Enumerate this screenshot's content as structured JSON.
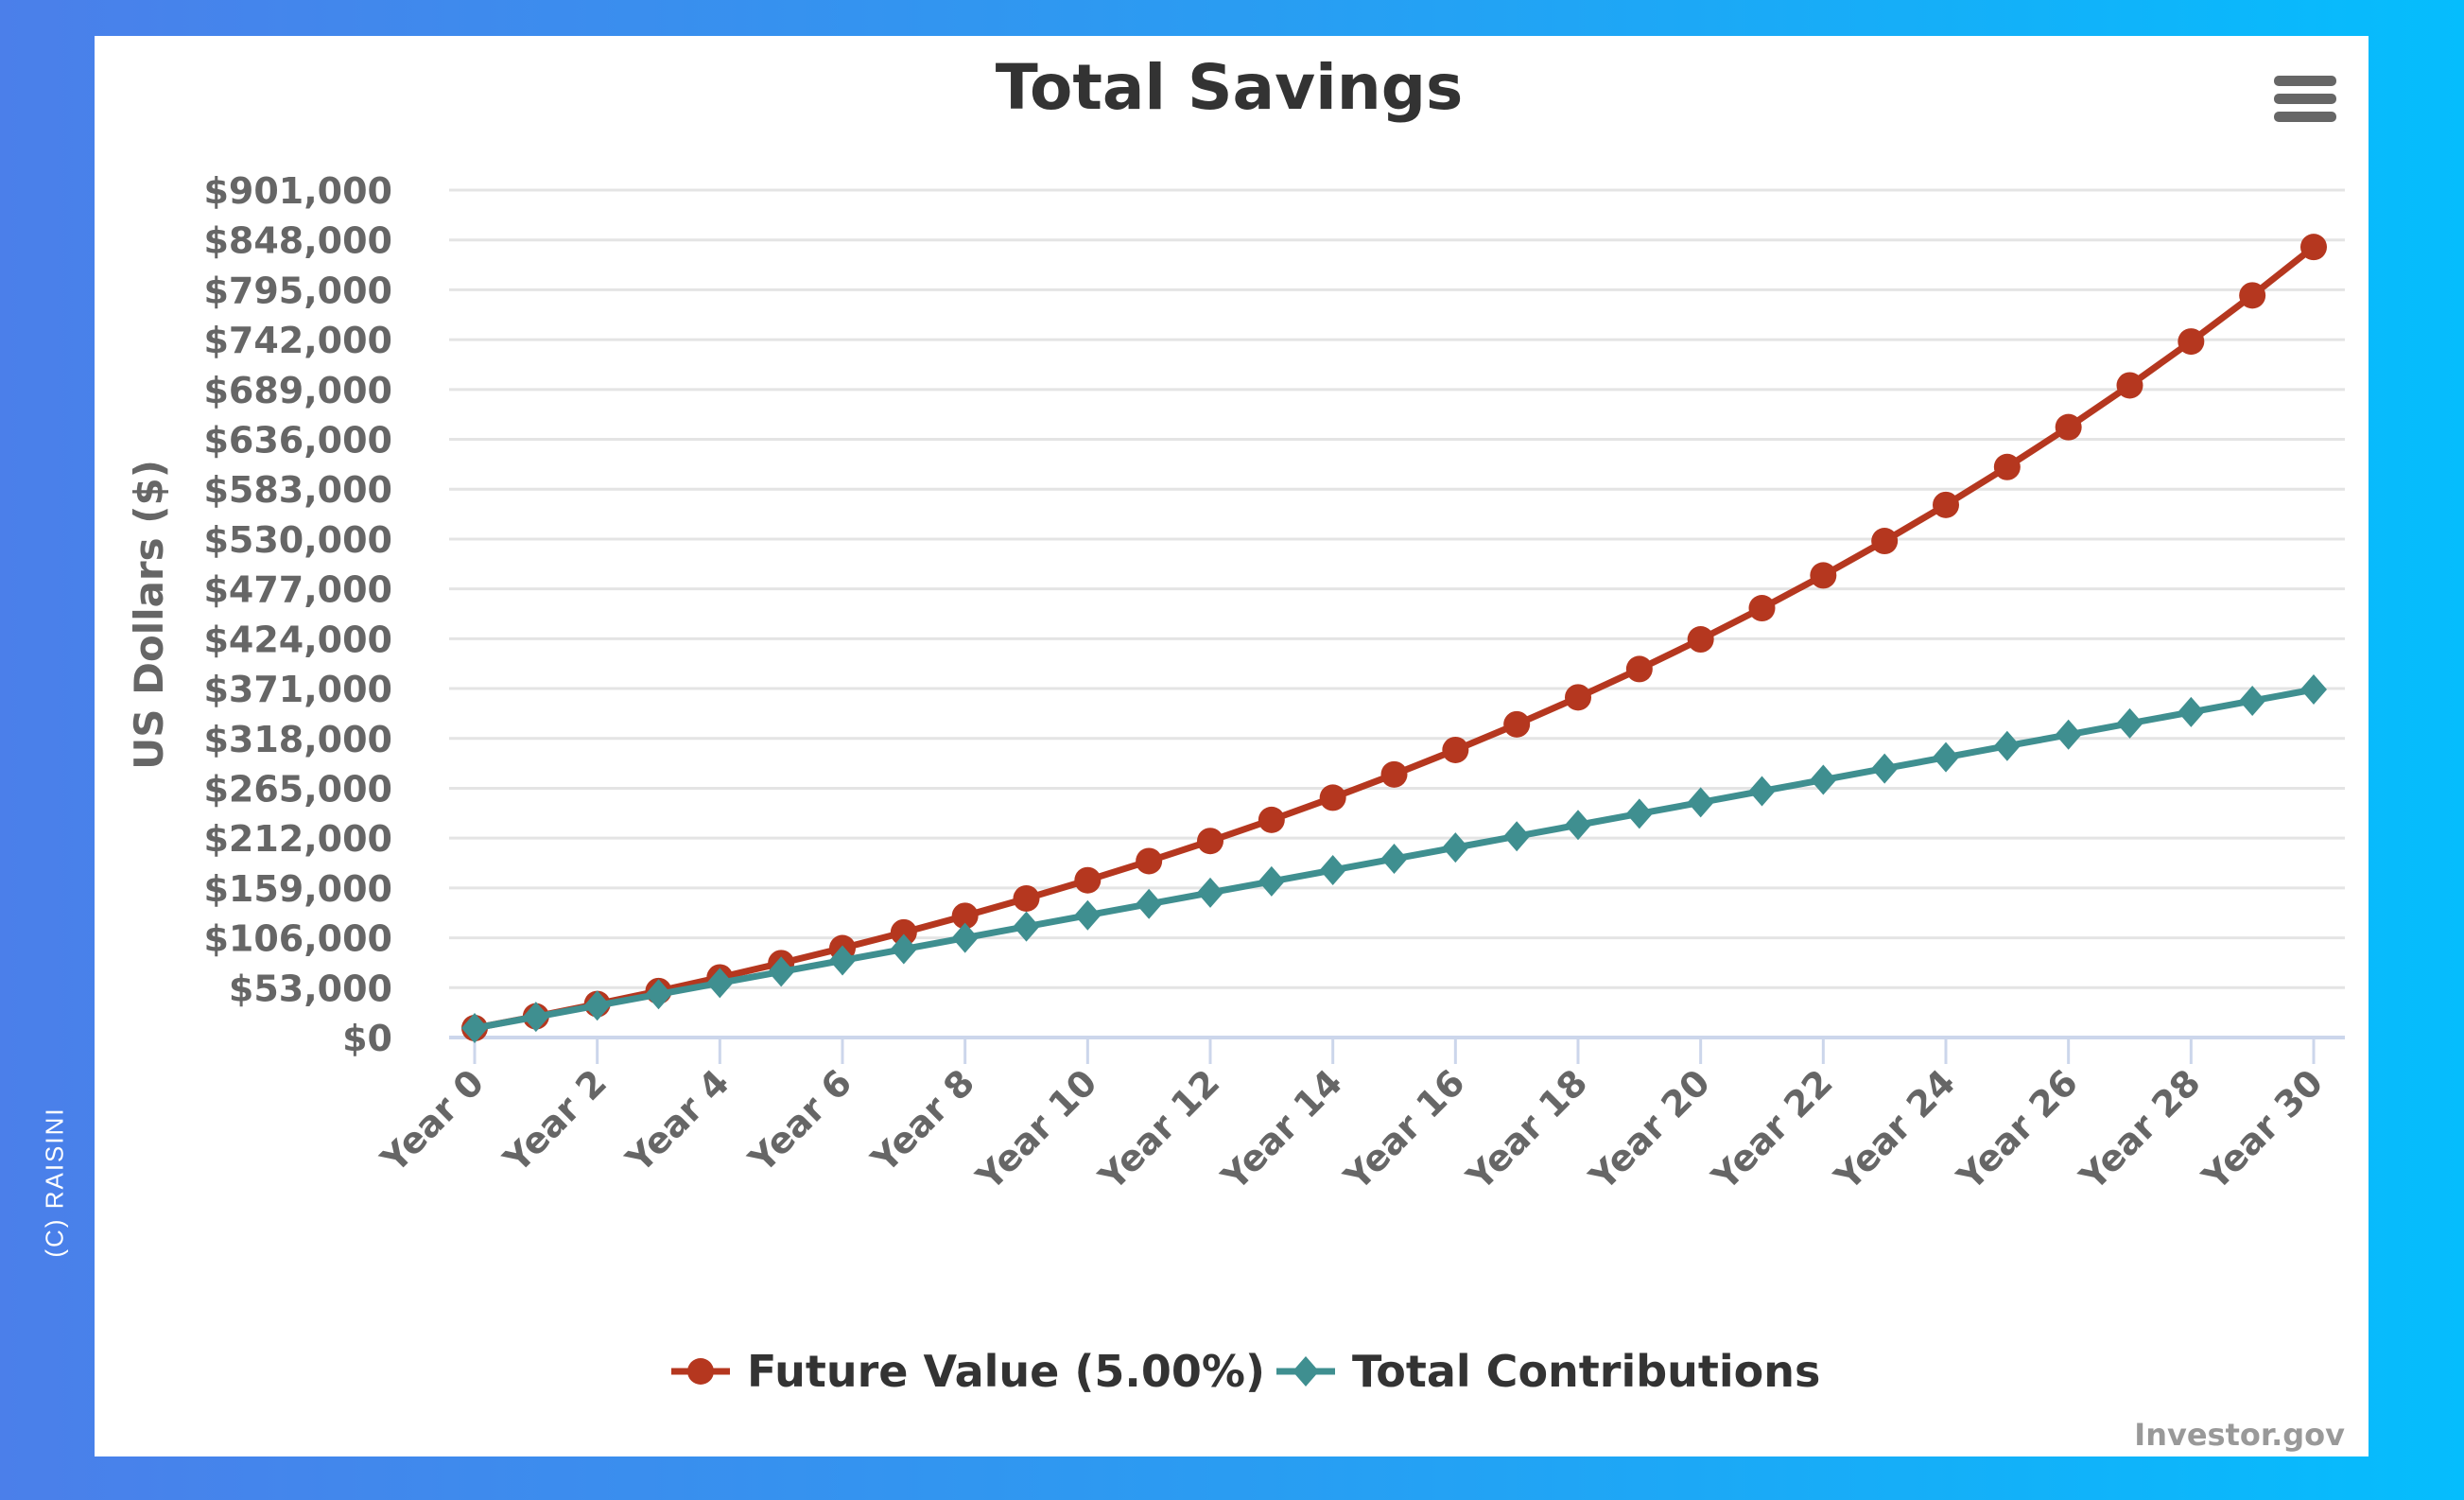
{
  "watermark": "(C) RAISINI",
  "menu_icon": "hamburger-menu-icon",
  "credit": "Investor.gov",
  "colors": {
    "future_value": "#b5371f",
    "total_contributions": "#3f8f90",
    "grid": "#e4e4e4",
    "axis": "#ccd6eb",
    "text": "#666666",
    "title": "#333333"
  },
  "chart_data": {
    "type": "line",
    "title": "Total Savings",
    "xlabel": "",
    "ylabel": "US Dollars ($)",
    "ylim": [
      0,
      901000
    ],
    "y_ticks": [
      "$0",
      "$53,000",
      "$106,000",
      "$159,000",
      "$212,000",
      "$265,000",
      "$318,000",
      "$371,000",
      "$424,000",
      "$477,000",
      "$530,000",
      "$583,000",
      "$636,000",
      "$689,000",
      "$742,000",
      "$795,000",
      "$848,000",
      "$901,000"
    ],
    "y_tick_values": [
      0,
      53000,
      106000,
      159000,
      212000,
      265000,
      318000,
      371000,
      424000,
      477000,
      530000,
      583000,
      636000,
      689000,
      742000,
      795000,
      848000,
      901000
    ],
    "x_tick_labels": [
      "Year 0",
      "Year 2",
      "Year 4",
      "Year 6",
      "Year 8",
      "Year 10",
      "Year 12",
      "Year 14",
      "Year 16",
      "Year 18",
      "Year 20",
      "Year 22",
      "Year 24",
      "Year 26",
      "Year 28",
      "Year 30"
    ],
    "x": [
      0,
      1,
      2,
      3,
      4,
      5,
      6,
      7,
      8,
      9,
      10,
      11,
      12,
      13,
      14,
      15,
      16,
      17,
      18,
      19,
      20,
      21,
      22,
      23,
      24,
      25,
      26,
      27,
      28,
      29,
      30
    ],
    "grid": true,
    "legend_position": "bottom",
    "series": [
      {
        "name": "Future Value (5.00%)",
        "marker": "circle",
        "values": [
          10000,
          22500,
          35625,
          49406,
          63877,
          79070,
          95024,
          111775,
          129364,
          147832,
          167224,
          187585,
          208964,
          231412,
          254983,
          279732,
          305719,
          333005,
          361655,
          391738,
          423324,
          456491,
          491315,
          527881,
          566275,
          606589,
          648918,
          693364,
          740032,
          789034,
          840486
        ]
      },
      {
        "name": "Total Contributions",
        "marker": "diamond",
        "values": [
          10000,
          22000,
          34000,
          46000,
          58000,
          70000,
          82000,
          94000,
          106000,
          118000,
          130000,
          142000,
          154000,
          166000,
          178000,
          190000,
          202000,
          214000,
          226000,
          238000,
          250000,
          262000,
          274000,
          286000,
          298000,
          310000,
          322000,
          334000,
          346000,
          358000,
          370000
        ]
      }
    ]
  }
}
